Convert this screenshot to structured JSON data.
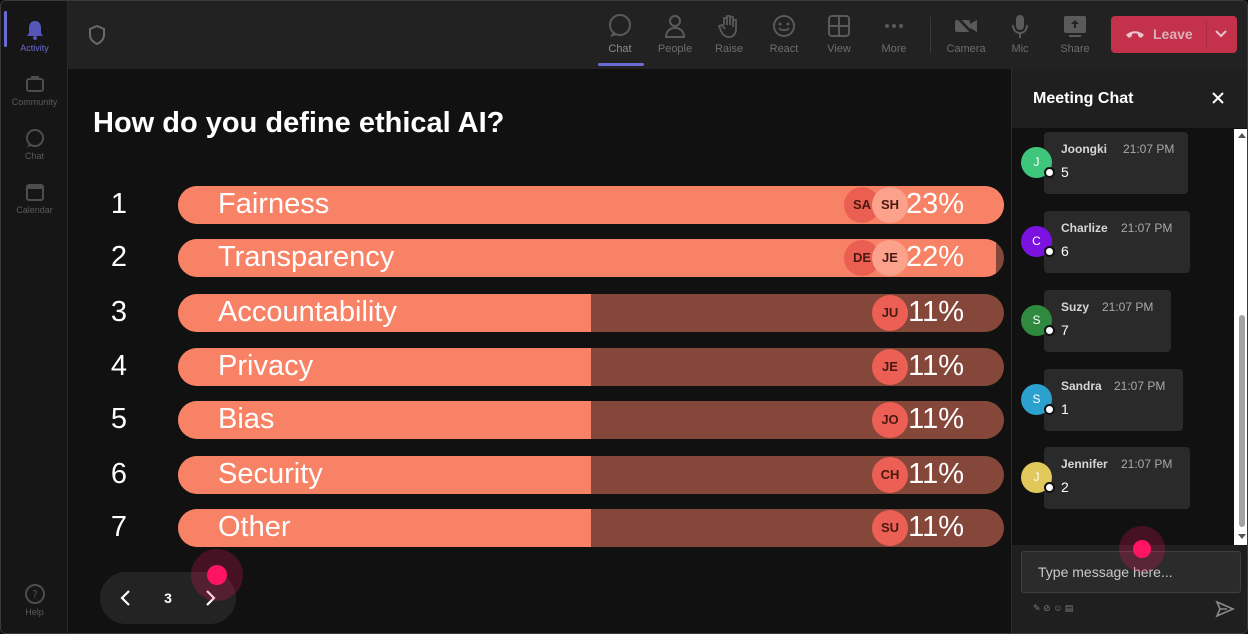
{
  "rail": {
    "items": [
      {
        "label": "Activity",
        "icon": "bell-icon",
        "active": true
      },
      {
        "label": "Community",
        "icon": "community-icon"
      },
      {
        "label": "Chat",
        "icon": "chat-icon"
      },
      {
        "label": "Calendar",
        "icon": "calendar-icon"
      }
    ],
    "help_label": "Help"
  },
  "toolbar": {
    "items": [
      {
        "label": "Chat",
        "icon": "chat-icon",
        "active": true
      },
      {
        "label": "People",
        "icon": "people-icon"
      },
      {
        "label": "Raise",
        "icon": "hand-icon"
      },
      {
        "label": "React",
        "icon": "smiley-icon"
      },
      {
        "label": "View",
        "icon": "grid-icon"
      },
      {
        "label": "More",
        "icon": "more-icon"
      },
      {
        "label": "Camera",
        "icon": "camera-off-icon"
      },
      {
        "label": "Mic",
        "icon": "mic-icon"
      },
      {
        "label": "Share",
        "icon": "share-icon"
      }
    ],
    "leave_label": "Leave"
  },
  "poll": {
    "question": "How do you define ethical AI?",
    "options": [
      {
        "num": "1",
        "label": "Fairness",
        "pct": "23%",
        "value": 0.23,
        "avatars": [
          "SA",
          "SH"
        ]
      },
      {
        "num": "2",
        "label": "Transparency",
        "pct": "22%",
        "value": 0.22,
        "avatars": [
          "DE",
          "JE"
        ]
      },
      {
        "num": "3",
        "label": "Accountability",
        "pct": "11%",
        "value": 0.11,
        "avatars": [
          "JU"
        ]
      },
      {
        "num": "4",
        "label": "Privacy",
        "pct": "11%",
        "value": 0.11,
        "avatars": [
          "JE"
        ]
      },
      {
        "num": "5",
        "label": "Bias",
        "pct": "11%",
        "value": 0.11,
        "avatars": [
          "JO"
        ]
      },
      {
        "num": "6",
        "label": "Security",
        "pct": "11%",
        "value": 0.11,
        "avatars": [
          "CH"
        ]
      },
      {
        "num": "7",
        "label": "Other",
        "pct": "11%",
        "value": 0.11,
        "avatars": [
          "SU"
        ]
      }
    ],
    "page": "3"
  },
  "chat": {
    "title": "Meeting Chat",
    "messages": [
      {
        "initial": "J",
        "name": "Joongki",
        "time": "21:07 PM",
        "text": "5",
        "color": "#3ec77c"
      },
      {
        "initial": "C",
        "name": "Charlize",
        "time": "21:07 PM",
        "text": "6",
        "color": "#7b12e0"
      },
      {
        "initial": "S",
        "name": "Suzy",
        "time": "21:07 PM",
        "text": "7",
        "color": "#2f8a3f"
      },
      {
        "initial": "S",
        "name": "Sandra",
        "time": "21:07 PM",
        "text": "1",
        "color": "#2ca0cf"
      },
      {
        "initial": "J",
        "name": "Jennifer",
        "time": "21:07 PM",
        "text": "2",
        "color": "#e0c85a"
      }
    ],
    "compose_placeholder": "Type message here..."
  },
  "colors": {
    "bar_fill": "#f88266",
    "bar_track": "#84473a",
    "leave": "#c4314b",
    "accent": "#6b6bd6",
    "cursor": "#ff1464"
  }
}
